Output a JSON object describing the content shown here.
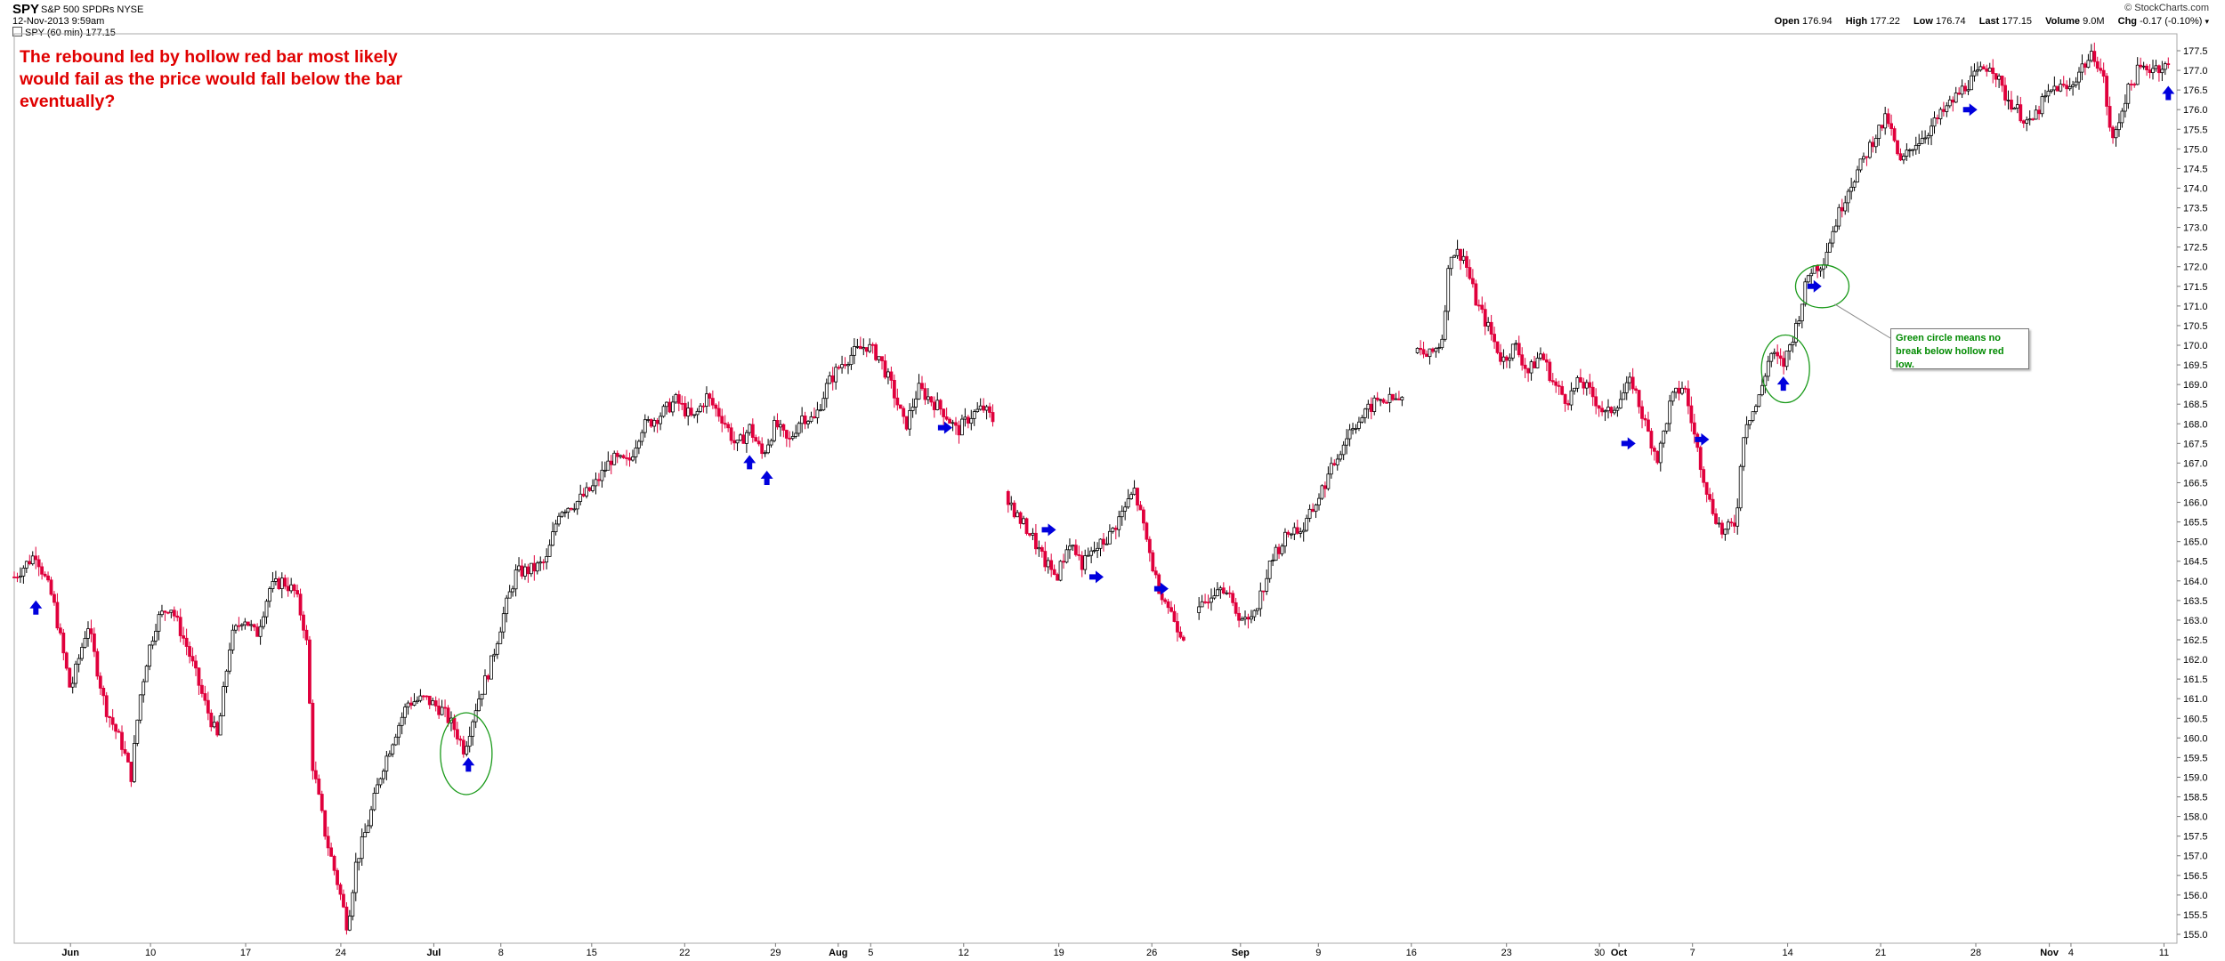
{
  "header": {
    "symbol": "SPY",
    "security_name": "S&P 500 SPDRs NYSE",
    "date": "12-Nov-2013 9:59am",
    "legend": "SPY (60 min) 177.15",
    "credit": "© StockCharts.com",
    "quote": [
      {
        "label": "Open",
        "value": "176.94"
      },
      {
        "label": "High",
        "value": "177.22"
      },
      {
        "label": "Low",
        "value": "176.74"
      },
      {
        "label": "Last",
        "value": "177.15"
      },
      {
        "label": "Volume",
        "value": "9.0M"
      },
      {
        "label": "Chg",
        "value": "-0.17 (-0.10%)"
      }
    ]
  },
  "annotations": {
    "red_note": "The rebound led by hollow red bar most likely would fail as the price would fall below the bar eventually?",
    "green_note": "Green circle means no break below hollow red low."
  },
  "colors": {
    "up_bar": "#000000",
    "down_bar": "#e0003c",
    "arrow": "#0000dd",
    "circle": "#1a9a1a",
    "note_red": "#e00000",
    "note_green": "#008a00"
  },
  "chart_data": {
    "type": "line",
    "title": "SPY (60 min)",
    "xlabel": "",
    "ylabel": "",
    "ylim": [
      155.0,
      177.5
    ],
    "grid": false,
    "legend_position": "top-left",
    "y_ticks": [
      "155.0",
      "155.5",
      "156.0",
      "156.5",
      "157.0",
      "157.5",
      "158.0",
      "158.5",
      "159.0",
      "159.5",
      "160.0",
      "160.5",
      "161.0",
      "161.5",
      "162.0",
      "162.5",
      "163.0",
      "163.5",
      "164.0",
      "164.5",
      "165.0",
      "165.5",
      "166.0",
      "166.5",
      "167.0",
      "167.5",
      "168.0",
      "168.5",
      "169.0",
      "169.5",
      "170.0",
      "170.5",
      "171.0",
      "171.5",
      "172.0",
      "172.5",
      "173.0",
      "173.5",
      "174.0",
      "174.5",
      "175.0",
      "175.5",
      "176.0",
      "176.5",
      "177.0",
      "177.5"
    ],
    "x_ticks": [
      {
        "label": "Jun",
        "bold": true,
        "t": 0.026
      },
      {
        "label": "10",
        "bold": false,
        "t": 0.063
      },
      {
        "label": "17",
        "bold": false,
        "t": 0.107
      },
      {
        "label": "24",
        "bold": false,
        "t": 0.151
      },
      {
        "label": "Jul",
        "bold": true,
        "t": 0.194
      },
      {
        "label": "8",
        "bold": false,
        "t": 0.225
      },
      {
        "label": "15",
        "bold": false,
        "t": 0.267
      },
      {
        "label": "22",
        "bold": false,
        "t": 0.31
      },
      {
        "label": "29",
        "bold": false,
        "t": 0.352
      },
      {
        "label": "Aug",
        "bold": true,
        "t": 0.381
      },
      {
        "label": "5",
        "bold": false,
        "t": 0.396
      },
      {
        "label": "12",
        "bold": false,
        "t": 0.439
      },
      {
        "label": "19",
        "bold": false,
        "t": 0.483
      },
      {
        "label": "26",
        "bold": false,
        "t": 0.526
      },
      {
        "label": "Sep",
        "bold": true,
        "t": 0.567
      },
      {
        "label": "9",
        "bold": false,
        "t": 0.603
      },
      {
        "label": "16",
        "bold": false,
        "t": 0.646
      },
      {
        "label": "23",
        "bold": false,
        "t": 0.69
      },
      {
        "label": "30",
        "bold": false,
        "t": 0.733
      },
      {
        "label": "Oct",
        "bold": true,
        "t": 0.742
      },
      {
        "label": "7",
        "bold": false,
        "t": 0.776
      },
      {
        "label": "14",
        "bold": false,
        "t": 0.82
      },
      {
        "label": "21",
        "bold": false,
        "t": 0.863
      },
      {
        "label": "28",
        "bold": false,
        "t": 0.907
      },
      {
        "label": "Nov",
        "bold": true,
        "t": 0.941
      },
      {
        "label": "4",
        "bold": false,
        "t": 0.951
      },
      {
        "label": "11",
        "bold": false,
        "t": 0.994
      }
    ],
    "series": [
      {
        "name": "SPY (60 min)",
        "anchors": [
          [
            0.0,
            164.1
          ],
          [
            0.01,
            164.7
          ],
          [
            0.018,
            163.5
          ],
          [
            0.026,
            161.2
          ],
          [
            0.034,
            162.9
          ],
          [
            0.042,
            160.8
          ],
          [
            0.05,
            159.8
          ],
          [
            0.054,
            159.0
          ],
          [
            0.058,
            161.0
          ],
          [
            0.062,
            162.2
          ],
          [
            0.066,
            163.0
          ],
          [
            0.072,
            163.4
          ],
          [
            0.08,
            162.3
          ],
          [
            0.088,
            160.9
          ],
          [
            0.094,
            160.0
          ],
          [
            0.1,
            162.5
          ],
          [
            0.106,
            163.1
          ],
          [
            0.112,
            162.6
          ],
          [
            0.118,
            163.8
          ],
          [
            0.124,
            164.0
          ],
          [
            0.13,
            163.7
          ],
          [
            0.135,
            162.6
          ],
          [
            0.138,
            159.3
          ],
          [
            0.144,
            157.5
          ],
          [
            0.15,
            156.2
          ],
          [
            0.154,
            155.2
          ],
          [
            0.158,
            156.8
          ],
          [
            0.164,
            157.9
          ],
          [
            0.17,
            159.2
          ],
          [
            0.176,
            160.1
          ],
          [
            0.182,
            160.9
          ],
          [
            0.19,
            161.0
          ],
          [
            0.198,
            160.7
          ],
          [
            0.204,
            160.2
          ],
          [
            0.208,
            159.7
          ],
          [
            0.214,
            160.9
          ],
          [
            0.22,
            161.8
          ],
          [
            0.226,
            163.1
          ],
          [
            0.232,
            164.2
          ],
          [
            0.24,
            164.3
          ],
          [
            0.246,
            164.5
          ],
          [
            0.252,
            165.8
          ],
          [
            0.26,
            166.0
          ],
          [
            0.268,
            166.4
          ],
          [
            0.276,
            167.1
          ],
          [
            0.284,
            167.0
          ],
          [
            0.29,
            167.9
          ],
          [
            0.298,
            168.2
          ],
          [
            0.306,
            168.6
          ],
          [
            0.314,
            168.1
          ],
          [
            0.32,
            168.7
          ],
          [
            0.328,
            168.1
          ],
          [
            0.334,
            167.4
          ],
          [
            0.34,
            167.9
          ],
          [
            0.346,
            167.2
          ],
          [
            0.352,
            168.0
          ],
          [
            0.358,
            167.5
          ],
          [
            0.364,
            168.2
          ],
          [
            0.37,
            168.1
          ],
          [
            0.376,
            169.0
          ],
          [
            0.382,
            169.5
          ],
          [
            0.388,
            169.8
          ],
          [
            0.394,
            170.0
          ],
          [
            0.4,
            169.7
          ],
          [
            0.406,
            168.9
          ],
          [
            0.412,
            167.9
          ],
          [
            0.418,
            168.9
          ],
          [
            0.424,
            168.6
          ],
          [
            0.43,
            168.3
          ],
          [
            0.436,
            167.8
          ],
          [
            0.442,
            168.2
          ],
          [
            0.448,
            168.4
          ],
          [
            0.454,
            168.0
          ],
          [
            0.458,
            166.3
          ],
          [
            0.464,
            165.6
          ],
          [
            0.47,
            165.2
          ],
          [
            0.476,
            164.5
          ],
          [
            0.482,
            164.1
          ],
          [
            0.488,
            165.0
          ],
          [
            0.494,
            164.4
          ],
          [
            0.5,
            164.8
          ],
          [
            0.506,
            165.1
          ],
          [
            0.512,
            165.7
          ],
          [
            0.518,
            166.3
          ],
          [
            0.522,
            165.4
          ],
          [
            0.528,
            164.0
          ],
          [
            0.534,
            163.3
          ],
          [
            0.54,
            162.6
          ],
          [
            0.546,
            163.0
          ],
          [
            0.552,
            163.6
          ],
          [
            0.558,
            164.0
          ],
          [
            0.564,
            163.3
          ],
          [
            0.57,
            162.9
          ],
          [
            0.576,
            163.6
          ],
          [
            0.582,
            164.6
          ],
          [
            0.59,
            165.3
          ],
          [
            0.596,
            165.3
          ],
          [
            0.602,
            166.0
          ],
          [
            0.608,
            166.7
          ],
          [
            0.612,
            167.2
          ],
          [
            0.618,
            167.9
          ],
          [
            0.624,
            168.2
          ],
          [
            0.63,
            168.6
          ],
          [
            0.636,
            168.6
          ],
          [
            0.642,
            168.6
          ],
          [
            0.648,
            169.9
          ],
          [
            0.654,
            169.7
          ],
          [
            0.66,
            170.1
          ],
          [
            0.664,
            172.4
          ],
          [
            0.67,
            172.3
          ],
          [
            0.676,
            171.1
          ],
          [
            0.682,
            170.4
          ],
          [
            0.688,
            169.6
          ],
          [
            0.694,
            170.0
          ],
          [
            0.7,
            169.3
          ],
          [
            0.706,
            169.8
          ],
          [
            0.712,
            169.0
          ],
          [
            0.718,
            168.6
          ],
          [
            0.724,
            169.1
          ],
          [
            0.73,
            168.7
          ],
          [
            0.736,
            168.2
          ],
          [
            0.742,
            168.6
          ],
          [
            0.748,
            169.1
          ],
          [
            0.754,
            168.0
          ],
          [
            0.76,
            167.1
          ],
          [
            0.766,
            168.6
          ],
          [
            0.772,
            169.0
          ],
          [
            0.778,
            167.4
          ],
          [
            0.784,
            166.0
          ],
          [
            0.79,
            165.2
          ],
          [
            0.796,
            165.5
          ],
          [
            0.8,
            168.0
          ],
          [
            0.806,
            168.5
          ],
          [
            0.812,
            169.8
          ],
          [
            0.818,
            169.5
          ],
          [
            0.824,
            170.5
          ],
          [
            0.83,
            171.9
          ],
          [
            0.836,
            172.1
          ],
          [
            0.842,
            173.1
          ],
          [
            0.848,
            174.0
          ],
          [
            0.854,
            174.6
          ],
          [
            0.86,
            175.3
          ],
          [
            0.866,
            175.8
          ],
          [
            0.872,
            174.6
          ],
          [
            0.878,
            175.1
          ],
          [
            0.884,
            175.4
          ],
          [
            0.89,
            175.8
          ],
          [
            0.896,
            176.2
          ],
          [
            0.902,
            176.6
          ],
          [
            0.908,
            176.9
          ],
          [
            0.914,
            177.2
          ],
          [
            0.92,
            176.4
          ],
          [
            0.926,
            176.0
          ],
          [
            0.932,
            175.6
          ],
          [
            0.938,
            176.2
          ],
          [
            0.944,
            176.6
          ],
          [
            0.95,
            176.5
          ],
          [
            0.956,
            177.1
          ],
          [
            0.962,
            177.4
          ],
          [
            0.966,
            176.8
          ],
          [
            0.97,
            175.1
          ],
          [
            0.976,
            176.3
          ],
          [
            0.982,
            177.0
          ],
          [
            0.99,
            177.1
          ],
          [
            0.996,
            177.1
          ]
        ],
        "gaps": [
          0.456,
          0.544,
          0.645
        ]
      }
    ],
    "markers": {
      "up_arrows": [
        [
          0.01,
          163.3
        ],
        [
          0.21,
          159.3
        ],
        [
          0.34,
          167.0
        ],
        [
          0.348,
          166.6
        ],
        [
          0.818,
          169.0
        ],
        [
          0.996,
          176.4
        ]
      ],
      "right_arrows": [
        [
          0.43,
          167.9
        ],
        [
          0.478,
          165.3
        ],
        [
          0.5,
          164.1
        ],
        [
          0.53,
          163.8
        ],
        [
          0.746,
          167.5
        ],
        [
          0.78,
          167.6
        ],
        [
          0.832,
          171.5
        ],
        [
          0.904,
          176.0
        ]
      ],
      "circles": [
        [
          0.209,
          159.6
        ],
        [
          0.819,
          169.4
        ],
        [
          0.836,
          171.5
        ]
      ]
    }
  }
}
